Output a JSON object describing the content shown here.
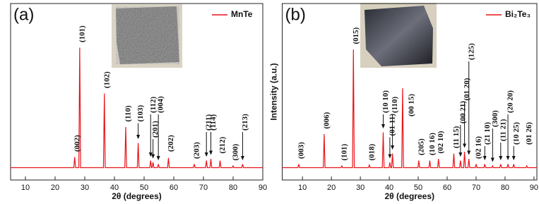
{
  "chart_data": [
    {
      "type": "line",
      "panel_label": "(a)",
      "x_label": "2θ (degrees)",
      "legend": "upper right",
      "xlim": [
        5,
        90
      ],
      "ylim": [
        0,
        100
      ],
      "xticks": [
        10,
        20,
        30,
        40,
        50,
        60,
        70,
        80,
        90
      ],
      "series": [
        {
          "name": "MnTe",
          "color": "#e8141a",
          "x": [
            5,
            26.3,
            26.6,
            26.9,
            28.0,
            28.3,
            28.6,
            36.3,
            36.6,
            36.9,
            43.5,
            43.8,
            44.1,
            47.7,
            48.0,
            48.3,
            51.9,
            52.2,
            52.5,
            52.7,
            53.0,
            53.3,
            54.5,
            54.8,
            55.1,
            57.9,
            58.2,
            58.5,
            66.6,
            66.9,
            67.2,
            70.7,
            71.0,
            71.3,
            72.2,
            72.5,
            72.8,
            75.3,
            75.6,
            75.9,
            79.7,
            80.0,
            80.3,
            82.9,
            83.2,
            83.5,
            90
          ],
          "values": [
            7,
            7,
            13,
            7,
            7,
            75,
            7,
            7,
            49,
            7,
            7,
            30,
            7,
            7,
            21,
            7,
            7,
            11,
            7,
            7,
            10,
            7,
            7,
            9,
            7,
            7,
            12.5,
            7,
            7,
            9,
            7,
            7,
            11,
            7,
            7,
            12,
            7,
            7,
            11,
            7,
            7,
            8,
            7,
            7,
            9,
            7,
            7
          ]
        }
      ],
      "annotations": [
        {
          "text": "(002)",
          "x": 26.6,
          "y": 16
        },
        {
          "text": "(101)",
          "x": 28.3,
          "y": 78
        },
        {
          "text": "(102)",
          "x": 36.6,
          "y": 52
        },
        {
          "text": "(110)",
          "x": 43.8,
          "y": 33
        },
        {
          "text": "(103)",
          "x": 48.0,
          "y": 33,
          "arrow_to": 22
        },
        {
          "text": "(112)",
          "x": 52.2,
          "y": 38,
          "arrow_to": 12
        },
        {
          "text": "(201)",
          "x": 53.0,
          "y": 24,
          "arrow_to": 11
        },
        {
          "text": "(004)",
          "x": 54.8,
          "y": 38,
          "arrow_to": 10
        },
        {
          "text": "(202)",
          "x": 58.2,
          "y": 16
        },
        {
          "text": "(203)",
          "x": 66.9,
          "y": 12
        },
        {
          "text": "(211)",
          "x": 71.0,
          "y": 28,
          "arrow_to": 12
        },
        {
          "text": "(114)",
          "x": 72.5,
          "y": 28,
          "arrow_to": 13
        },
        {
          "text": "(212)",
          "x": 75.6,
          "y": 15
        },
        {
          "text": "(300)",
          "x": 80.0,
          "y": 11
        },
        {
          "text": "(213)",
          "x": 83.2,
          "y": 28,
          "arrow_to": 10
        }
      ]
    },
    {
      "type": "line",
      "panel_label": "(b)",
      "x_label": "2θ (degrees)",
      "y_label": "Intensity (a.u.)",
      "legend": "upper right",
      "xlim": [
        3,
        91
      ],
      "ylim": [
        0,
        100
      ],
      "xticks": [
        10,
        20,
        30,
        40,
        50,
        60,
        70,
        80,
        90
      ],
      "series": [
        {
          "name": "Bi₂Te₃",
          "color": "#e8141a",
          "x": [
            3,
            8.4,
            8.7,
            9.0,
            17.2,
            17.5,
            17.8,
            23.3,
            23.6,
            23.9,
            27.3,
            27.6,
            27.9,
            32.8,
            33.1,
            33.4,
            37.6,
            37.9,
            38.2,
            39.9,
            40.2,
            40.5,
            40.8,
            41.1,
            41.4,
            44.3,
            44.6,
            44.9,
            49.9,
            50.2,
            50.5,
            53.7,
            54.0,
            54.3,
            56.7,
            57.0,
            57.3,
            62.0,
            62.3,
            62.6,
            64.3,
            64.6,
            64.9,
            65.7,
            66.0,
            66.3,
            67.2,
            67.5,
            67.8,
            69.7,
            70.0,
            70.3,
            72.7,
            73.0,
            73.3,
            75.4,
            75.7,
            76.0,
            78.2,
            78.5,
            78.8,
            80.7,
            81.0,
            81.3,
            82.7,
            83.0,
            83.3,
            87.2,
            87.5,
            87.8,
            91
          ],
          "values": [
            7,
            7,
            9,
            7,
            7,
            26,
            7,
            7,
            8,
            7,
            7,
            74,
            7,
            7,
            8.5,
            7,
            7,
            27,
            7,
            7,
            10,
            7,
            7,
            15,
            7,
            7,
            52,
            7,
            7,
            11,
            7,
            7,
            11,
            7,
            7,
            12,
            7,
            7,
            15,
            7,
            7,
            11,
            7,
            7,
            16,
            7,
            7,
            12,
            7,
            7,
            9,
            7,
            7,
            9,
            7,
            7,
            8,
            7,
            7,
            9,
            7,
            7,
            9,
            7,
            7,
            9,
            7,
            7,
            8,
            7,
            7
          ]
        }
      ],
      "annotations": [
        {
          "text": "(003)",
          "x": 8.7,
          "y": 12
        },
        {
          "text": "(006)",
          "x": 17.5,
          "y": 29
        },
        {
          "text": "(101)",
          "x": 23.6,
          "y": 11
        },
        {
          "text": "(015)",
          "x": 27.6,
          "y": 77
        },
        {
          "text": "(018)",
          "x": 33.1,
          "y": 11
        },
        {
          "text": "(10 10)",
          "x": 37.9,
          "y": 38,
          "arrow_to": 28
        },
        {
          "text": "(01 11)",
          "x": 40.2,
          "y": 25,
          "arrow_to": 11
        },
        {
          "text": "(110)",
          "x": 41.1,
          "y": 38,
          "arrow_to": 16
        },
        {
          "text": "(00 15)",
          "x": 46.8,
          "y": 36
        },
        {
          "text": "(205)",
          "x": 50.2,
          "y": 14
        },
        {
          "text": "(10 16)",
          "x": 54.0,
          "y": 14
        },
        {
          "text": "(02 10)",
          "x": 57.0,
          "y": 15
        },
        {
          "text": "(11 15)",
          "x": 62.3,
          "y": 18
        },
        {
          "text": "(00 21)",
          "x": 64.6,
          "y": 32,
          "arrow_to": 12
        },
        {
          "text": "(01 20)",
          "x": 66.0,
          "y": 45,
          "arrow_to": 17
        },
        {
          "text": "(125)",
          "x": 67.5,
          "y": 68,
          "arrow_to": 13
        },
        {
          "text": "(02 16)",
          "x": 70.0,
          "y": 12
        },
        {
          "text": "(21 10)",
          "x": 73.0,
          "y": 20,
          "arrow_to": 10
        },
        {
          "text": "(300)",
          "x": 75.7,
          "y": 30,
          "arrow_to": 9
        },
        {
          "text": "(11 21)",
          "x": 78.5,
          "y": 22,
          "arrow_to": 10
        },
        {
          "text": "(20 20)",
          "x": 81.0,
          "y": 38,
          "arrow_to": 10
        },
        {
          "text": "(10 25)",
          "x": 83.0,
          "y": 20,
          "arrow_to": 10
        },
        {
          "text": "(01 26)",
          "x": 87.5,
          "y": 20
        }
      ]
    }
  ]
}
